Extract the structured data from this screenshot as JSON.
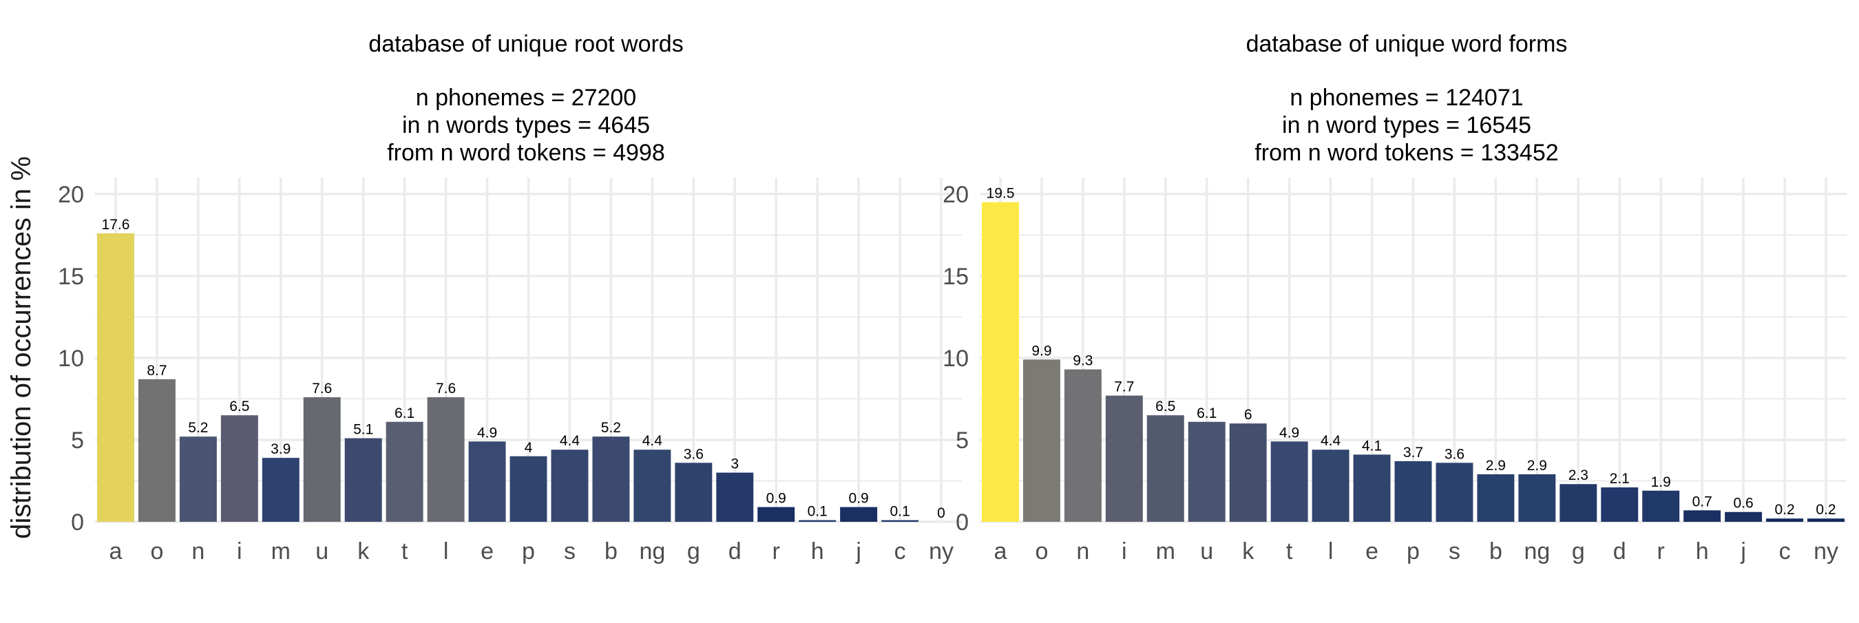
{
  "ylabel": "distribution of occurrences in %",
  "chart_data": [
    {
      "type": "bar",
      "title": "database of unique root words",
      "subtitle_lines": [
        "n  phonemes = 27200",
        "in n words types = 4645",
        "from n word tokens = 4998"
      ],
      "categories": [
        "a",
        "o",
        "n",
        "i",
        "m",
        "u",
        "k",
        "t",
        "l",
        "e",
        "p",
        "s",
        "b",
        "ng",
        "g",
        "d",
        "r",
        "h",
        "j",
        "c",
        "ny"
      ],
      "values": [
        17.6,
        8.7,
        5.2,
        6.5,
        3.9,
        7.6,
        5.1,
        6.1,
        7.6,
        4.9,
        4,
        4.4,
        5.2,
        4.4,
        3.6,
        3,
        0.9,
        0.1,
        0.9,
        0.1,
        0
      ],
      "bar_colors": [
        "#e3d25c",
        "#727272",
        "#495572",
        "#5a5b72",
        "#2e4270",
        "#676970",
        "#3d4a6e",
        "#5a5e72",
        "#696a72",
        "#394970",
        "#30456e",
        "#35476e",
        "#3b4a6e",
        "#32466e",
        "#2f426e",
        "#25396b",
        "#1a2f62",
        "#22386a",
        "#1a2f62",
        "#22386a",
        "#22386a"
      ],
      "ylim": [
        0,
        21
      ],
      "yticks": [
        0,
        5,
        10,
        15,
        20
      ],
      "grid": true
    },
    {
      "type": "bar",
      "title": "database of unique word forms",
      "subtitle_lines": [
        "n  phonemes = 124071",
        "in n word types = 16545",
        "from n word tokens = 133452"
      ],
      "categories": [
        "a",
        "o",
        "n",
        "i",
        "m",
        "u",
        "k",
        "t",
        "l",
        "e",
        "p",
        "s",
        "b",
        "ng",
        "g",
        "d",
        "r",
        "h",
        "j",
        "c",
        "ny"
      ],
      "values": [
        19.5,
        9.9,
        9.3,
        7.7,
        6.5,
        6.1,
        6,
        4.9,
        4.4,
        4.1,
        3.7,
        3.6,
        2.9,
        2.9,
        2.3,
        2.1,
        1.9,
        0.7,
        0.6,
        0.2,
        0.2
      ],
      "bar_colors": [
        "#fde945",
        "#7b7a74",
        "#727274",
        "#5b5e70",
        "#535a70",
        "#4b5470",
        "#444f6e",
        "#394870",
        "#33466e",
        "#30456e",
        "#2c426e",
        "#2c426e",
        "#28406c",
        "#28406c",
        "#233a68",
        "#22386a",
        "#203769",
        "#1a2f62",
        "#1a2f62",
        "#122a5e",
        "#122a5e"
      ],
      "ylim": [
        0,
        21
      ],
      "yticks": [
        0,
        5,
        10,
        15,
        20
      ],
      "grid": true
    }
  ]
}
